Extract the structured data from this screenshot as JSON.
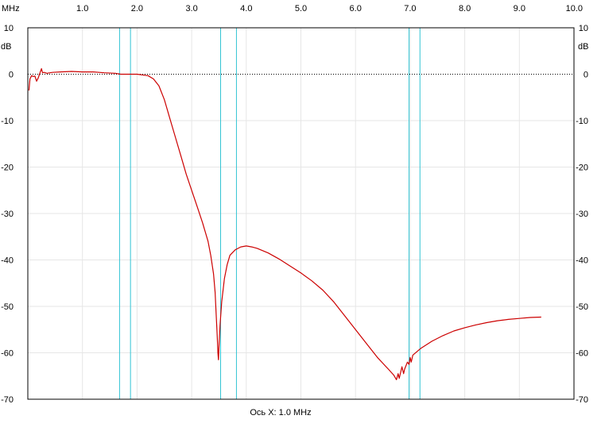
{
  "chart_data": {
    "type": "line",
    "x_unit_label": "MHz",
    "y_unit_label": "dB",
    "xlabel": "Ось X: 1.0 MHz",
    "xlim": [
      0.0,
      10.0
    ],
    "ylim": [
      -70,
      10
    ],
    "x_ticks": [
      {
        "value": 1.0,
        "label": "1.0"
      },
      {
        "value": 2.0,
        "label": "2.0"
      },
      {
        "value": 3.0,
        "label": "3.0"
      },
      {
        "value": 4.0,
        "label": "4.0"
      },
      {
        "value": 5.0,
        "label": "5.0"
      },
      {
        "value": 6.0,
        "label": "6.0"
      },
      {
        "value": 7.0,
        "label": "7.0"
      },
      {
        "value": 8.0,
        "label": "8.0"
      },
      {
        "value": 9.0,
        "label": "9.0"
      },
      {
        "value": 10.0,
        "label": "10.0"
      }
    ],
    "y_ticks": [
      {
        "value": 10,
        "label": "10"
      },
      {
        "value": 0,
        "label": "0"
      },
      {
        "value": -10,
        "label": "-10"
      },
      {
        "value": -20,
        "label": "-20"
      },
      {
        "value": -30,
        "label": "-30"
      },
      {
        "value": -40,
        "label": "-40"
      },
      {
        "value": -50,
        "label": "-50"
      },
      {
        "value": -60,
        "label": "-60"
      },
      {
        "value": -70,
        "label": "-70"
      }
    ],
    "grid": true,
    "reference_line_db": 0,
    "markers_mhz": [
      1.68,
      1.88,
      3.53,
      3.82,
      6.98,
      7.18
    ],
    "series": [
      {
        "color": "#cc0000",
        "points": [
          [
            0.02,
            -3.5
          ],
          [
            0.04,
            -1.0
          ],
          [
            0.07,
            -0.3
          ],
          [
            0.1,
            -0.5
          ],
          [
            0.13,
            -0.4
          ],
          [
            0.16,
            -1.5
          ],
          [
            0.19,
            -0.8
          ],
          [
            0.22,
            0.2
          ],
          [
            0.25,
            1.2
          ],
          [
            0.27,
            0.3
          ],
          [
            0.3,
            0.4
          ],
          [
            0.35,
            0.2
          ],
          [
            0.45,
            0.4
          ],
          [
            0.6,
            0.5
          ],
          [
            0.8,
            0.6
          ],
          [
            1.0,
            0.5
          ],
          [
            1.2,
            0.5
          ],
          [
            1.4,
            0.3
          ],
          [
            1.6,
            0.2
          ],
          [
            1.7,
            0.0
          ],
          [
            1.8,
            0.0
          ],
          [
            2.0,
            0.0
          ],
          [
            2.2,
            -0.3
          ],
          [
            2.3,
            -1.0
          ],
          [
            2.4,
            -2.5
          ],
          [
            2.5,
            -5.5
          ],
          [
            2.6,
            -9.5
          ],
          [
            2.7,
            -13.5
          ],
          [
            2.8,
            -17.5
          ],
          [
            2.9,
            -21.5
          ],
          [
            3.0,
            -25.0
          ],
          [
            3.1,
            -28.5
          ],
          [
            3.2,
            -32.0
          ],
          [
            3.3,
            -36.0
          ],
          [
            3.35,
            -39.0
          ],
          [
            3.4,
            -43.0
          ],
          [
            3.43,
            -47.0
          ],
          [
            3.45,
            -52.0
          ],
          [
            3.47,
            -57.0
          ],
          [
            3.48,
            -60.0
          ],
          [
            3.49,
            -61.5
          ],
          [
            3.5,
            -59.0
          ],
          [
            3.52,
            -54.0
          ],
          [
            3.55,
            -49.0
          ],
          [
            3.6,
            -44.0
          ],
          [
            3.65,
            -41.0
          ],
          [
            3.7,
            -39.0
          ],
          [
            3.8,
            -37.8
          ],
          [
            3.9,
            -37.2
          ],
          [
            4.0,
            -37.0
          ],
          [
            4.1,
            -37.2
          ],
          [
            4.2,
            -37.5
          ],
          [
            4.4,
            -38.5
          ],
          [
            4.6,
            -39.8
          ],
          [
            4.8,
            -41.3
          ],
          [
            5.0,
            -42.8
          ],
          [
            5.2,
            -44.5
          ],
          [
            5.4,
            -46.5
          ],
          [
            5.6,
            -49.0
          ],
          [
            5.8,
            -52.0
          ],
          [
            6.0,
            -55.0
          ],
          [
            6.2,
            -58.0
          ],
          [
            6.4,
            -61.0
          ],
          [
            6.6,
            -63.5
          ],
          [
            6.7,
            -64.8
          ],
          [
            6.75,
            -65.8
          ],
          [
            6.78,
            -64.5
          ],
          [
            6.8,
            -65.5
          ],
          [
            6.85,
            -63.0
          ],
          [
            6.88,
            -64.5
          ],
          [
            6.9,
            -63.5
          ],
          [
            6.95,
            -62.0
          ],
          [
            6.98,
            -62.5
          ],
          [
            7.0,
            -61.0
          ],
          [
            7.02,
            -62.0
          ],
          [
            7.05,
            -60.5
          ],
          [
            7.2,
            -59.0
          ],
          [
            7.4,
            -57.5
          ],
          [
            7.6,
            -56.3
          ],
          [
            7.8,
            -55.3
          ],
          [
            8.0,
            -54.6
          ],
          [
            8.2,
            -54.0
          ],
          [
            8.4,
            -53.5
          ],
          [
            8.6,
            -53.1
          ],
          [
            8.8,
            -52.8
          ],
          [
            9.0,
            -52.6
          ],
          [
            9.2,
            -52.4
          ],
          [
            9.4,
            -52.3
          ]
        ]
      }
    ]
  }
}
